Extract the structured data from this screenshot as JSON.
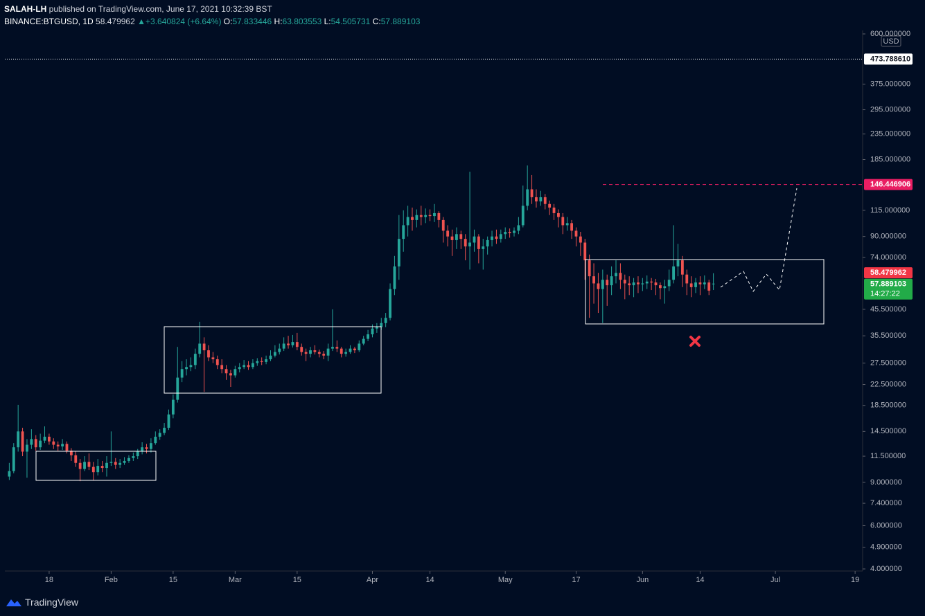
{
  "header": {
    "publisher": "SALAH-LH",
    "published": "published on TradingView.com, June 17, 2021 10:32:39 BST",
    "symbol": "BINANCE:BTGUSD, 1D",
    "last": "58.479962",
    "arrow": "▲",
    "change": "+3.640824 (+6.64%)",
    "ohlc": [
      {
        "label": "O:",
        "value": "57.833446"
      },
      {
        "label": "H:",
        "value": "63.803553"
      },
      {
        "label": "L:",
        "value": "54.505731"
      },
      {
        "label": "C:",
        "value": "57.889103"
      }
    ]
  },
  "chart_data": {
    "type": "candlestick",
    "up_color": "#26a69a",
    "down_color": "#ef5350",
    "log_scale": true,
    "grid": false,
    "xlim": [
      8,
      201.7
    ],
    "xticks": [
      18,
      {
        "value": 32,
        "label": "Feb"
      },
      {
        "value": 46,
        "label": "15"
      },
      {
        "value": 60,
        "label": "Mar"
      },
      {
        "value": 74,
        "label": "15"
      },
      {
        "value": 91,
        "label": "Apr"
      },
      {
        "value": 104,
        "label": "14"
      },
      {
        "value": 121,
        "label": "May"
      },
      {
        "value": 137,
        "label": "17"
      },
      {
        "value": 152,
        "label": "Jun"
      },
      {
        "value": 165,
        "label": "14"
      },
      {
        "value": 182,
        "label": "Jul"
      },
      {
        "value": 200,
        "label": "19"
      }
    ],
    "ylim": [
      4,
      600
    ],
    "yticks": [
      {
        "value": 600,
        "label": "600.000000"
      },
      {
        "value": 375,
        "label": "375.000000"
      },
      {
        "value": 295,
        "label": "295.000000"
      },
      {
        "value": 235,
        "label": "235.000000"
      },
      {
        "value": 185,
        "label": "185.000000"
      },
      {
        "value": 115,
        "label": "115.000000"
      },
      {
        "value": 90,
        "label": "90.000000"
      },
      {
        "value": 74,
        "label": "74.000000"
      },
      {
        "value": 45.5,
        "label": "45.500000"
      },
      {
        "value": 35.5,
        "label": "35.500000"
      },
      {
        "value": 27.5,
        "label": "27.500000"
      },
      {
        "value": 22.5,
        "label": "22.500000"
      },
      {
        "value": 18.5,
        "label": "18.500000"
      },
      {
        "value": 14.5,
        "label": "14.500000"
      },
      {
        "value": 11.5,
        "label": "11.500000"
      },
      {
        "value": 9,
        "label": "9.000000"
      },
      {
        "value": 7.4,
        "label": "7.400000"
      },
      {
        "value": 6,
        "label": "6.000000"
      },
      {
        "value": 4.9,
        "label": "4.900000"
      },
      {
        "value": 4,
        "label": "4.000000"
      }
    ],
    "currency": "USD",
    "price_markers": [
      {
        "value": 473.78861,
        "label": "473.788610",
        "color": "#ffffff"
      },
      {
        "value": 146.446906,
        "label": "146.446906",
        "color": "#e91e63"
      },
      {
        "value": 58.479962,
        "label": "58.479962",
        "color": "#f23645"
      },
      {
        "value": 57.889103,
        "label": "57.889103",
        "color": "#22ab48"
      }
    ],
    "countdown": "14:27:22",
    "x": [
      9,
      10,
      11,
      12,
      13,
      14,
      15,
      16,
      17,
      18,
      19,
      20,
      21,
      22,
      23,
      24,
      25,
      26,
      27,
      28,
      29,
      30,
      31,
      32,
      33,
      34,
      35,
      36,
      37,
      38,
      39,
      40,
      41,
      42,
      43,
      44,
      45,
      46,
      47,
      48,
      49,
      50,
      51,
      52,
      53,
      54,
      55,
      56,
      57,
      58,
      59,
      60,
      61,
      62,
      63,
      64,
      65,
      66,
      67,
      68,
      69,
      70,
      71,
      72,
      73,
      74,
      75,
      76,
      77,
      78,
      79,
      80,
      81,
      82,
      83,
      84,
      85,
      86,
      87,
      88,
      89,
      90,
      91,
      92,
      93,
      94,
      95,
      96,
      97,
      98,
      99,
      100,
      101,
      102,
      103,
      104,
      105,
      106,
      107,
      108,
      109,
      110,
      111,
      112,
      113,
      114,
      115,
      116,
      117,
      118,
      119,
      120,
      121,
      122,
      123,
      124,
      125,
      126,
      127,
      128,
      129,
      130,
      131,
      132,
      133,
      134,
      135,
      136,
      137,
      138,
      139,
      140,
      141,
      142,
      143,
      144,
      145,
      146,
      147,
      148,
      149,
      150,
      151,
      152,
      153,
      154,
      155,
      156,
      157,
      158,
      159,
      160,
      161,
      162,
      163,
      164,
      165,
      166,
      167,
      168
    ],
    "ohlc": [
      [
        9.5,
        10.8,
        9.2,
        10.0
      ],
      [
        10.0,
        13.0,
        9.8,
        12.5
      ],
      [
        12.5,
        18.6,
        12.0,
        14.5
      ],
      [
        14.5,
        15.0,
        11.5,
        12.0
      ],
      [
        12.0,
        13.5,
        9.4,
        12.8
      ],
      [
        12.8,
        14.8,
        12.3,
        13.5
      ],
      [
        13.5,
        14.0,
        12.1,
        12.5
      ],
      [
        12.5,
        14.2,
        12.2,
        13.3
      ],
      [
        13.3,
        15.2,
        13.0,
        13.8
      ],
      [
        13.8,
        14.2,
        12.8,
        13.2
      ],
      [
        13.2,
        13.6,
        12.3,
        12.8
      ],
      [
        12.8,
        13.2,
        12.1,
        12.6
      ],
      [
        12.6,
        13.5,
        12.2,
        12.9
      ],
      [
        12.9,
        13.2,
        11.8,
        12.1
      ],
      [
        12.1,
        12.4,
        11.0,
        11.6
      ],
      [
        11.6,
        12.0,
        10.4,
        10.8
      ],
      [
        10.8,
        11.2,
        9.1,
        10.2
      ],
      [
        10.2,
        11.5,
        10.0,
        10.9
      ],
      [
        10.9,
        11.8,
        10.1,
        10.4
      ],
      [
        10.4,
        10.9,
        9.2,
        9.9
      ],
      [
        9.9,
        11.2,
        9.6,
        10.5
      ],
      [
        10.5,
        11.0,
        9.9,
        10.3
      ],
      [
        10.3,
        11.5,
        9.5,
        10.8
      ],
      [
        10.8,
        14.5,
        10.5,
        10.9
      ],
      [
        10.9,
        11.3,
        10.2,
        10.6
      ],
      [
        10.6,
        11.2,
        10.3,
        10.8
      ],
      [
        10.8,
        11.4,
        10.6,
        11.0
      ],
      [
        11.0,
        11.6,
        10.8,
        11.3
      ],
      [
        11.3,
        11.9,
        11.0,
        11.5
      ],
      [
        11.5,
        12.3,
        11.2,
        12.0
      ],
      [
        12.0,
        13.1,
        11.7,
        12.5
      ],
      [
        12.5,
        12.9,
        11.8,
        12.3
      ],
      [
        12.3,
        13.6,
        11.9,
        13.0
      ],
      [
        13.0,
        14.5,
        12.8,
        13.8
      ],
      [
        13.8,
        14.8,
        13.4,
        14.3
      ],
      [
        14.3,
        15.7,
        14.0,
        15.0
      ],
      [
        15.0,
        17.8,
        14.7,
        17.0
      ],
      [
        17.0,
        20.5,
        16.4,
        19.5
      ],
      [
        19.5,
        32.0,
        19.0,
        24.0
      ],
      [
        24.0,
        28.0,
        23.0,
        26.0
      ],
      [
        26.0,
        28.5,
        24.5,
        26.5
      ],
      [
        26.5,
        29.0,
        25.5,
        27.0
      ],
      [
        27.0,
        31.5,
        26.0,
        30.0
      ],
      [
        30.0,
        40.5,
        29.0,
        33.0
      ],
      [
        33.0,
        35.0,
        21.0,
        31.0
      ],
      [
        31.0,
        32.5,
        28.0,
        29.0
      ],
      [
        29.0,
        30.5,
        27.5,
        28.5
      ],
      [
        28.5,
        29.5,
        26.0,
        27.0
      ],
      [
        27.0,
        28.5,
        25.0,
        26.0
      ],
      [
        26.0,
        27.0,
        23.5,
        25.0
      ],
      [
        25.0,
        25.8,
        22.0,
        24.5
      ],
      [
        24.5,
        26.8,
        24.0,
        26.0
      ],
      [
        26.0,
        27.5,
        25.2,
        26.5
      ],
      [
        26.5,
        28.3,
        26.0,
        27.0
      ],
      [
        27.0,
        28.0,
        25.8,
        26.5
      ],
      [
        26.5,
        28.5,
        26.0,
        27.5
      ],
      [
        27.5,
        28.8,
        26.8,
        28.0
      ],
      [
        28.0,
        29.0,
        27.0,
        27.8
      ],
      [
        27.8,
        29.5,
        27.2,
        28.5
      ],
      [
        28.5,
        31.0,
        28.0,
        29.5
      ],
      [
        29.5,
        32.5,
        29.0,
        30.5
      ],
      [
        30.5,
        33.0,
        29.8,
        31.5
      ],
      [
        31.5,
        35.0,
        30.8,
        33.0
      ],
      [
        33.0,
        35.5,
        31.5,
        32.5
      ],
      [
        32.5,
        35.8,
        31.8,
        33.5
      ],
      [
        33.5,
        36.5,
        31.0,
        32.0
      ],
      [
        32.0,
        33.0,
        29.5,
        30.5
      ],
      [
        30.5,
        31.5,
        28.0,
        30.0
      ],
      [
        30.0,
        32.0,
        29.0,
        31.0
      ],
      [
        31.0,
        32.5,
        29.8,
        30.5
      ],
      [
        30.5,
        31.2,
        29.0,
        30.0
      ],
      [
        30.0,
        30.8,
        28.5,
        29.5
      ],
      [
        29.5,
        33.0,
        28.0,
        31.5
      ],
      [
        31.5,
        45.5,
        30.8,
        32.0
      ],
      [
        32.0,
        34.0,
        30.5,
        31.5
      ],
      [
        31.5,
        32.0,
        29.0,
        30.0
      ],
      [
        30.0,
        31.5,
        29.2,
        30.5
      ],
      [
        30.5,
        32.5,
        30.0,
        31.5
      ],
      [
        31.5,
        32.0,
        30.2,
        31.0
      ],
      [
        31.0,
        34.0,
        30.5,
        33.0
      ],
      [
        33.0,
        35.5,
        32.5,
        34.5
      ],
      [
        34.5,
        37.5,
        33.8,
        36.0
      ],
      [
        36.0,
        39.5,
        35.0,
        38.0
      ],
      [
        38.0,
        40.0,
        36.5,
        38.5
      ],
      [
        38.5,
        42.0,
        37.5,
        40.0
      ],
      [
        40.0,
        44.0,
        38.5,
        42.0
      ],
      [
        42.0,
        58.0,
        41.0,
        55.0
      ],
      [
        55.0,
        75.0,
        52.0,
        68.0
      ],
      [
        68.0,
        110.0,
        60.0,
        88.0
      ],
      [
        88.0,
        115.0,
        78.0,
        100.0
      ],
      [
        100.0,
        120.0,
        90.0,
        108.0
      ],
      [
        108.0,
        118.0,
        95.0,
        105.0
      ],
      [
        105.0,
        116.0,
        98.0,
        110.0
      ],
      [
        110.0,
        120.0,
        100.0,
        108.0
      ],
      [
        108.0,
        117.0,
        102.0,
        110.0
      ],
      [
        110.0,
        116.0,
        104.0,
        109.0
      ],
      [
        109.0,
        122.0,
        103.0,
        112.0
      ],
      [
        112.0,
        114.0,
        98.0,
        105.0
      ],
      [
        105.0,
        108.0,
        85.0,
        95.0
      ],
      [
        95.0,
        100.0,
        82.0,
        90.0
      ],
      [
        90.0,
        96.0,
        75.0,
        87.0
      ],
      [
        87.0,
        98.0,
        80.0,
        92.0
      ],
      [
        92.0,
        95.0,
        80.0,
        88.0
      ],
      [
        88.0,
        92.0,
        72.0,
        82.0
      ],
      [
        82.0,
        165.0,
        66.0,
        85.0
      ],
      [
        85.0,
        96.0,
        78.0,
        90.0
      ],
      [
        90.0,
        92.0,
        70.0,
        80.0
      ],
      [
        80.0,
        88.0,
        66.0,
        82.0
      ],
      [
        82.0,
        90.0,
        76.0,
        87.0
      ],
      [
        87.0,
        95.0,
        82.0,
        90.0
      ],
      [
        90.0,
        96.0,
        84.0,
        88.0
      ],
      [
        88.0,
        96.0,
        85.0,
        92.0
      ],
      [
        92.0,
        98.0,
        88.0,
        94.0
      ],
      [
        94.0,
        97.0,
        89.0,
        93.0
      ],
      [
        93.0,
        98.0,
        90.0,
        95.0
      ],
      [
        95.0,
        108.0,
        92.0,
        100.0
      ],
      [
        100.0,
        145.0,
        98.0,
        120.0
      ],
      [
        120.0,
        175.0,
        115.0,
        140.0
      ],
      [
        140.0,
        160.0,
        122.0,
        130.0
      ],
      [
        130.0,
        140.0,
        118.0,
        125.0
      ],
      [
        125.0,
        138.0,
        120.0,
        130.0
      ],
      [
        130.0,
        134.0,
        116.0,
        122.0
      ],
      [
        122.0,
        126.0,
        110.0,
        118.0
      ],
      [
        118.0,
        122.0,
        105.0,
        112.0
      ],
      [
        112.0,
        116.0,
        98.0,
        108.0
      ],
      [
        108.0,
        112.0,
        92.0,
        100.0
      ],
      [
        100.0,
        108.0,
        95.0,
        102.0
      ],
      [
        102.0,
        105.0,
        88.0,
        95.0
      ],
      [
        95.0,
        98.0,
        82.0,
        90.0
      ],
      [
        90.0,
        94.0,
        75.0,
        85.0
      ],
      [
        85.0,
        88.0,
        60.0,
        72.0
      ],
      [
        72.0,
        76.0,
        42.0,
        62.0
      ],
      [
        62.0,
        70.0,
        48.0,
        58.0
      ],
      [
        58.0,
        64.0,
        44.0,
        55.0
      ],
      [
        55.0,
        66.0,
        40.0,
        60.0
      ],
      [
        60.0,
        63.0,
        47.0,
        57.0
      ],
      [
        57.0,
        68.0,
        52.0,
        62.0
      ],
      [
        62.0,
        72.0,
        58.0,
        64.0
      ],
      [
        64.0,
        70.0,
        55.0,
        60.0
      ],
      [
        60.0,
        63.0,
        50.0,
        58.0
      ],
      [
        58.0,
        62.0,
        52.0,
        57.0
      ],
      [
        57.0,
        61.0,
        51.0,
        58.5
      ],
      [
        58.5,
        62.0,
        53.0,
        57.5
      ],
      [
        57.5,
        61.0,
        54.0,
        58.0
      ],
      [
        58.0,
        62.5,
        55.0,
        59.0
      ],
      [
        59.0,
        61.0,
        54.5,
        58.5
      ],
      [
        58.5,
        60.5,
        52.0,
        57.0
      ],
      [
        57.0,
        58.5,
        50.0,
        55.5
      ],
      [
        55.5,
        60.0,
        48.0,
        56.5
      ],
      [
        56.5,
        66.0,
        54.0,
        60.0
      ],
      [
        60.0,
        100.0,
        58.0,
        68.0
      ],
      [
        68.0,
        84.0,
        62.0,
        72.0
      ],
      [
        72.0,
        75.0,
        56.0,
        63.0
      ],
      [
        63.0,
        66.0,
        52.0,
        58.0
      ],
      [
        58.0,
        62.0,
        51.0,
        56.0
      ],
      [
        56.0,
        61.0,
        53.0,
        58.5
      ],
      [
        58.5,
        62.0,
        52.0,
        57.5
      ],
      [
        57.5,
        62.5,
        55.0,
        58.5
      ],
      [
        58.5,
        60.0,
        52.0,
        54.2
      ],
      [
        57.833446,
        63.803553,
        54.505731,
        57.889103
      ]
    ]
  },
  "footer": {
    "brand": "TradingView"
  }
}
